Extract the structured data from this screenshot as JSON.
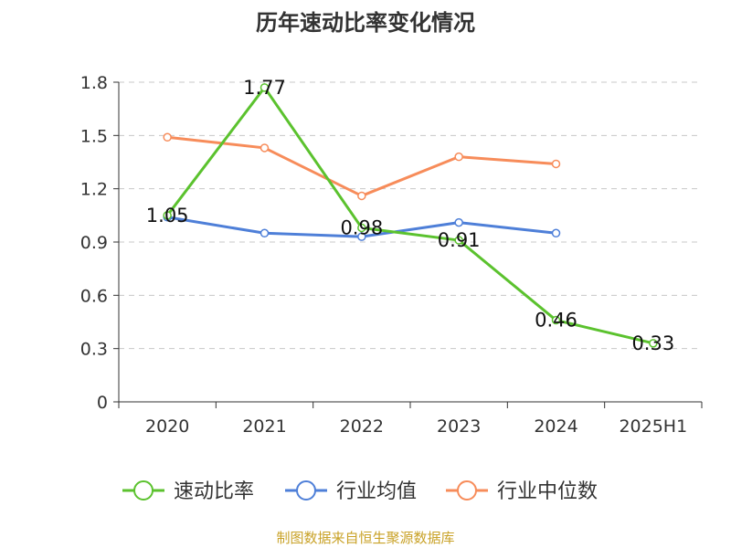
{
  "chart_data": {
    "type": "line",
    "title": "历年速动比率变化情况",
    "categories": [
      "2020",
      "2021",
      "2022",
      "2023",
      "2024",
      "2025H1"
    ],
    "y_ticks": [
      "0",
      "0.3",
      "0.6",
      "0.9",
      "1.2",
      "1.5",
      "1.8"
    ],
    "ylim": [
      0,
      1.8
    ],
    "grid": "horizontal dashed",
    "legend_position": "bottom",
    "series": [
      {
        "name": "速动比率",
        "color": "#5bc22e",
        "values": [
          1.05,
          1.77,
          0.98,
          0.91,
          0.46,
          0.33
        ],
        "labels": [
          "1.05",
          "1.77",
          "0.98",
          "0.91",
          "0.46",
          "0.33"
        ]
      },
      {
        "name": "行业均值",
        "color": "#4e7fd8",
        "values": [
          1.04,
          0.95,
          0.93,
          1.01,
          0.95,
          null
        ]
      },
      {
        "name": "行业中位数",
        "color": "#f78c5a",
        "values": [
          1.49,
          1.43,
          1.16,
          1.38,
          1.34,
          null
        ]
      }
    ]
  },
  "source_text": "制图数据来自恒生聚源数据库"
}
